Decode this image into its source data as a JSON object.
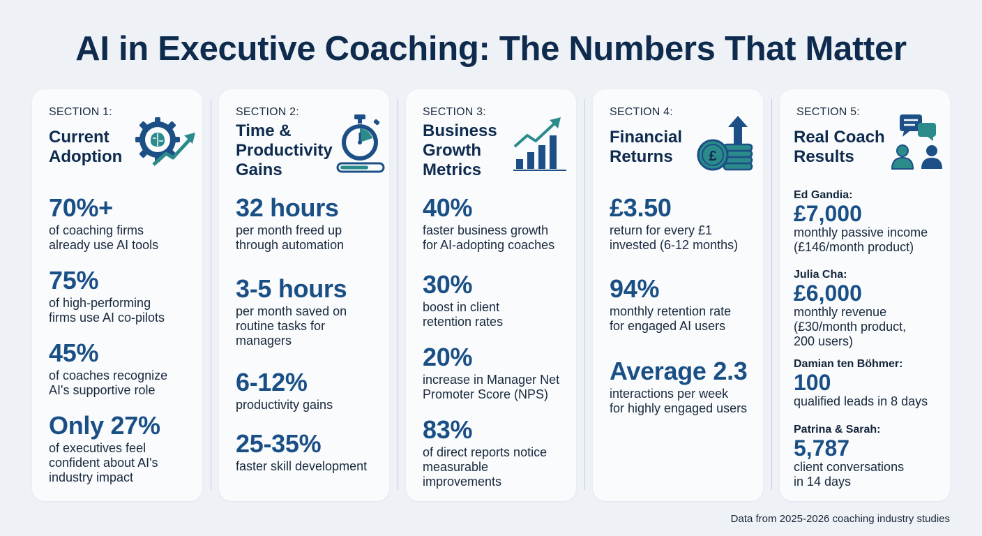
{
  "title": "AI in Executive Coaching: The Numbers That Matter",
  "footer": "Data from 2025-2026 coaching industry studies",
  "colors": {
    "navy": "#0e2a4d",
    "accent_blue": "#1a4f86",
    "teal": "#2b8a8a",
    "card": "#f9fbfd",
    "background": "#eef2f7"
  },
  "sections": [
    {
      "label": "SECTION 1:",
      "heading": "Current\nAdoption",
      "icon": "gear-brain-growth-icon",
      "stats": [
        {
          "value": "70%+",
          "text": "of coaching firms\nalready use AI tools"
        },
        {
          "value": "75%",
          "text": "of high-performing\nfirms use AI co-pilots"
        },
        {
          "value": "45%",
          "text": "of coaches recognize\nAI's supportive role"
        },
        {
          "value": "Only 27%",
          "text": "of executives feel\nconfident about AI's\nindustry impact"
        }
      ]
    },
    {
      "label": "SECTION 2:",
      "heading": "Time &\nProductivity\nGains",
      "icon": "stopwatch-icon",
      "stats": [
        {
          "value": "32 hours",
          "text": "per month freed up\nthrough automation"
        },
        {
          "value": "3-5 hours",
          "text": "per month saved on\nroutine tasks for\nmanagers"
        },
        {
          "value": "6-12%",
          "text": "productivity gains"
        },
        {
          "value": "25-35%",
          "text": "faster skill development"
        }
      ]
    },
    {
      "label": "SECTION 3:",
      "heading": "Business\nGrowth\nMetrics",
      "icon": "bar-chart-growth-icon",
      "stats": [
        {
          "value": "40%",
          "text": "faster business growth\nfor AI-adopting coaches"
        },
        {
          "value": "30%",
          "text": "boost in client\nretention rates"
        },
        {
          "value": "20%",
          "text": "increase in Manager Net\nPromoter Score (NPS)"
        },
        {
          "value": "83%",
          "text": "of direct reports notice\nmeasurable\nimprovements"
        }
      ]
    },
    {
      "label": "SECTION 4:",
      "heading": "Financial\nReturns",
      "icon": "coin-stack-arrow-icon",
      "stats": [
        {
          "value": "£3.50",
          "text": "return for every £1\ninvested (6-12 months)"
        },
        {
          "value": "94%",
          "text": "monthly retention rate\nfor engaged AI users"
        },
        {
          "value": "Average 2.3",
          "text": "interactions per week\nfor highly engaged users"
        }
      ]
    },
    {
      "label": "SECTION 5:",
      "heading": "Real Coach\nResults",
      "icon": "people-chat-icon",
      "people": [
        {
          "name": "Ed Gandia:",
          "value": "£7,000",
          "text": "monthly passive income\n(£146/month product)"
        },
        {
          "name": "Julia Cha:",
          "value": "£6,000",
          "text": "monthly revenue\n(£30/month product,\n200 users)"
        },
        {
          "name": "Damian ten Böhmer:",
          "value": "100",
          "text": "qualified leads in 8 days"
        },
        {
          "name": "Patrina & Sarah:",
          "value": "5,787",
          "text": "client conversations\nin 14 days"
        }
      ]
    }
  ]
}
